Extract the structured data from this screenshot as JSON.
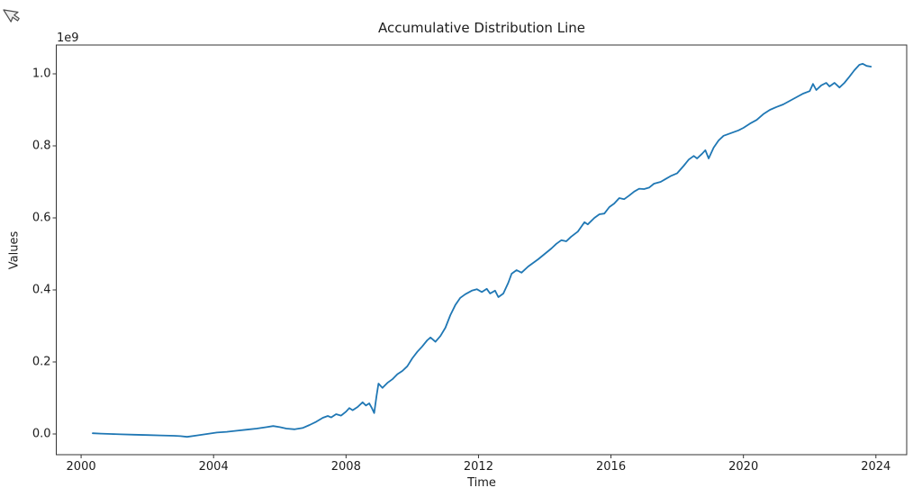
{
  "window": {
    "background": "#ffffff"
  },
  "cursor": {
    "icon": "arrow-pointer"
  },
  "chart_data": {
    "type": "line",
    "title": "Accumulative Distribution Line",
    "xlabel": "Time",
    "ylabel": "Values",
    "y_offset_text": "1e9",
    "grid": false,
    "legend_position": "none",
    "colors": {
      "line": "#1f77b4",
      "spine": "#333333",
      "tick": "#333333",
      "text": "#1c1c1c",
      "background": "#ffffff"
    },
    "xlim": [
      1999.25,
      2024.93
    ],
    "ylim": [
      -0.0575,
      1.08
    ],
    "value_unit_multiplier": 1000000000,
    "x_ticks": {
      "values": [
        2000,
        2004,
        2008,
        2012,
        2016,
        2020,
        2024
      ],
      "labels": [
        "2000",
        "2004",
        "2008",
        "2012",
        "2016",
        "2020",
        "2024"
      ]
    },
    "y_ticks": {
      "values": [
        0.0,
        0.2,
        0.4,
        0.6,
        0.8,
        1.0
      ],
      "labels": [
        "0.0",
        "0.2",
        "0.4",
        "0.6",
        "0.8",
        "1.0"
      ]
    },
    "series": [
      {
        "color": "#1f77b4",
        "line_width": 1.8,
        "points": [
          [
            2000.35,
            0.002
          ],
          [
            2000.6,
            0.001
          ],
          [
            2000.9,
            0.0
          ],
          [
            2001.2,
            -0.001
          ],
          [
            2001.6,
            -0.002
          ],
          [
            2002.0,
            -0.003
          ],
          [
            2002.4,
            -0.004
          ],
          [
            2002.8,
            -0.005
          ],
          [
            2003.0,
            -0.006
          ],
          [
            2003.2,
            -0.008
          ],
          [
            2003.5,
            -0.004
          ],
          [
            2003.8,
            0.0
          ],
          [
            2004.1,
            0.004
          ],
          [
            2004.4,
            0.006
          ],
          [
            2004.7,
            0.009
          ],
          [
            2005.0,
            0.012
          ],
          [
            2005.3,
            0.015
          ],
          [
            2005.6,
            0.019
          ],
          [
            2005.8,
            0.022
          ],
          [
            2006.0,
            0.019
          ],
          [
            2006.2,
            0.015
          ],
          [
            2006.45,
            0.013
          ],
          [
            2006.7,
            0.017
          ],
          [
            2006.9,
            0.025
          ],
          [
            2007.1,
            0.034
          ],
          [
            2007.3,
            0.045
          ],
          [
            2007.45,
            0.05
          ],
          [
            2007.55,
            0.046
          ],
          [
            2007.7,
            0.055
          ],
          [
            2007.85,
            0.051
          ],
          [
            2008.0,
            0.062
          ],
          [
            2008.1,
            0.072
          ],
          [
            2008.2,
            0.066
          ],
          [
            2008.35,
            0.075
          ],
          [
            2008.5,
            0.088
          ],
          [
            2008.6,
            0.079
          ],
          [
            2008.7,
            0.085
          ],
          [
            2008.78,
            0.072
          ],
          [
            2008.85,
            0.058
          ],
          [
            2008.92,
            0.105
          ],
          [
            2008.98,
            0.14
          ],
          [
            2009.1,
            0.128
          ],
          [
            2009.25,
            0.142
          ],
          [
            2009.4,
            0.152
          ],
          [
            2009.55,
            0.166
          ],
          [
            2009.7,
            0.175
          ],
          [
            2009.85,
            0.188
          ],
          [
            2010.0,
            0.21
          ],
          [
            2010.15,
            0.228
          ],
          [
            2010.3,
            0.243
          ],
          [
            2010.45,
            0.26
          ],
          [
            2010.55,
            0.268
          ],
          [
            2010.7,
            0.256
          ],
          [
            2010.85,
            0.272
          ],
          [
            2011.0,
            0.295
          ],
          [
            2011.15,
            0.33
          ],
          [
            2011.3,
            0.358
          ],
          [
            2011.45,
            0.378
          ],
          [
            2011.6,
            0.388
          ],
          [
            2011.8,
            0.398
          ],
          [
            2011.95,
            0.402
          ],
          [
            2012.1,
            0.394
          ],
          [
            2012.25,
            0.403
          ],
          [
            2012.35,
            0.39
          ],
          [
            2012.5,
            0.398
          ],
          [
            2012.6,
            0.38
          ],
          [
            2012.75,
            0.39
          ],
          [
            2012.9,
            0.42
          ],
          [
            2013.0,
            0.445
          ],
          [
            2013.15,
            0.455
          ],
          [
            2013.3,
            0.448
          ],
          [
            2013.5,
            0.465
          ],
          [
            2013.65,
            0.475
          ],
          [
            2013.8,
            0.485
          ],
          [
            2014.0,
            0.5
          ],
          [
            2014.2,
            0.515
          ],
          [
            2014.35,
            0.528
          ],
          [
            2014.5,
            0.538
          ],
          [
            2014.65,
            0.535
          ],
          [
            2014.8,
            0.548
          ],
          [
            2015.0,
            0.562
          ],
          [
            2015.2,
            0.588
          ],
          [
            2015.3,
            0.582
          ],
          [
            2015.5,
            0.6
          ],
          [
            2015.65,
            0.61
          ],
          [
            2015.8,
            0.612
          ],
          [
            2015.95,
            0.63
          ],
          [
            2016.1,
            0.64
          ],
          [
            2016.25,
            0.655
          ],
          [
            2016.4,
            0.652
          ],
          [
            2016.55,
            0.662
          ],
          [
            2016.7,
            0.673
          ],
          [
            2016.85,
            0.681
          ],
          [
            2017.0,
            0.68
          ],
          [
            2017.15,
            0.684
          ],
          [
            2017.3,
            0.695
          ],
          [
            2017.5,
            0.7
          ],
          [
            2017.65,
            0.708
          ],
          [
            2017.8,
            0.716
          ],
          [
            2018.0,
            0.724
          ],
          [
            2018.2,
            0.745
          ],
          [
            2018.35,
            0.762
          ],
          [
            2018.5,
            0.772
          ],
          [
            2018.6,
            0.765
          ],
          [
            2018.75,
            0.778
          ],
          [
            2018.85,
            0.788
          ],
          [
            2018.95,
            0.765
          ],
          [
            2019.1,
            0.795
          ],
          [
            2019.25,
            0.815
          ],
          [
            2019.4,
            0.828
          ],
          [
            2019.55,
            0.833
          ],
          [
            2019.7,
            0.838
          ],
          [
            2019.85,
            0.843
          ],
          [
            2020.0,
            0.85
          ],
          [
            2020.2,
            0.862
          ],
          [
            2020.4,
            0.872
          ],
          [
            2020.6,
            0.888
          ],
          [
            2020.8,
            0.9
          ],
          [
            2021.0,
            0.908
          ],
          [
            2021.2,
            0.915
          ],
          [
            2021.4,
            0.925
          ],
          [
            2021.6,
            0.935
          ],
          [
            2021.8,
            0.945
          ],
          [
            2022.0,
            0.952
          ],
          [
            2022.1,
            0.972
          ],
          [
            2022.2,
            0.955
          ],
          [
            2022.35,
            0.968
          ],
          [
            2022.5,
            0.975
          ],
          [
            2022.6,
            0.965
          ],
          [
            2022.75,
            0.975
          ],
          [
            2022.9,
            0.962
          ],
          [
            2023.05,
            0.975
          ],
          [
            2023.2,
            0.992
          ],
          [
            2023.35,
            1.01
          ],
          [
            2023.5,
            1.025
          ],
          [
            2023.6,
            1.028
          ],
          [
            2023.72,
            1.022
          ],
          [
            2023.85,
            1.02
          ]
        ]
      }
    ]
  }
}
